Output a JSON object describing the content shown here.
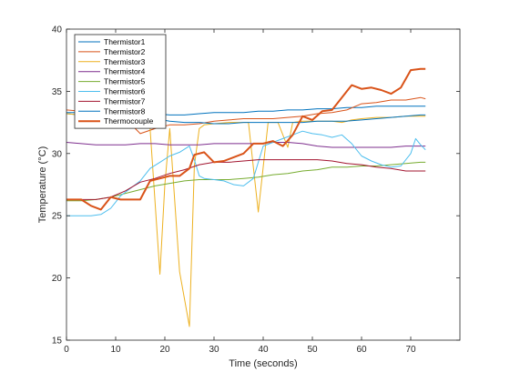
{
  "chart_data": {
    "type": "line",
    "title": "",
    "xlabel": "Time (seconds)",
    "ylabel": "Temperature (°C)",
    "xlim": [
      0,
      80
    ],
    "ylim": [
      15,
      40
    ],
    "xticks": [
      0,
      10,
      20,
      30,
      40,
      50,
      60,
      70
    ],
    "yticks": [
      15,
      20,
      25,
      30,
      35,
      40
    ],
    "grid": false,
    "legend_position": "top-left",
    "series": [
      {
        "name": "Thermistor1",
        "color": "#0072BD",
        "x": [
          0,
          3,
          6,
          9,
          12,
          15,
          18,
          21,
          24,
          27,
          30,
          33,
          36,
          39,
          42,
          45,
          48,
          51,
          54,
          57,
          60,
          63,
          66,
          69,
          72,
          73
        ],
        "y": [
          33.2,
          33.1,
          33.1,
          33.0,
          33.0,
          33.1,
          33.2,
          33.1,
          33.1,
          33.2,
          33.3,
          33.3,
          33.3,
          33.4,
          33.4,
          33.5,
          33.5,
          33.6,
          33.6,
          33.7,
          33.7,
          33.8,
          33.8,
          33.8,
          33.8,
          33.8
        ]
      },
      {
        "name": "Thermistor2",
        "color": "#D95319",
        "x": [
          0,
          3,
          6,
          9,
          12,
          15,
          18,
          21,
          24,
          27,
          30,
          33,
          36,
          39,
          42,
          45,
          48,
          51,
          54,
          57,
          60,
          63,
          66,
          69,
          72,
          73
        ],
        "y": [
          33.5,
          33.4,
          33.3,
          33.0,
          32.8,
          31.6,
          32.0,
          32.3,
          32.3,
          32.4,
          32.6,
          32.7,
          32.8,
          32.8,
          32.8,
          32.9,
          33.0,
          33.2,
          33.3,
          33.5,
          34.0,
          34.1,
          34.3,
          34.3,
          34.5,
          34.4
        ]
      },
      {
        "name": "Thermistor3",
        "color": "#EDB120",
        "x": [
          0,
          3,
          6,
          9,
          12,
          14,
          16,
          17,
          19,
          20,
          21,
          23,
          25,
          26,
          27,
          28,
          30,
          33,
          36,
          37,
          39,
          41,
          43,
          45,
          46,
          48,
          51,
          54,
          56,
          58,
          60,
          63,
          66,
          69,
          72,
          73
        ],
        "y": [
          33.2,
          33.1,
          33.0,
          32.9,
          32.8,
          32.7,
          32.5,
          32.0,
          20.3,
          27.5,
          32.0,
          20.5,
          16.1,
          29.0,
          32.0,
          32.3,
          32.4,
          32.5,
          32.5,
          32.5,
          25.3,
          32.5,
          32.5,
          30.5,
          32.5,
          32.6,
          32.6,
          32.6,
          32.5,
          32.7,
          32.8,
          32.9,
          32.9,
          33.0,
          33.0,
          33.0
        ]
      },
      {
        "name": "Thermistor4",
        "color": "#7E2F8E",
        "x": [
          0,
          3,
          6,
          9,
          12,
          15,
          18,
          21,
          24,
          27,
          30,
          33,
          36,
          39,
          42,
          45,
          48,
          51,
          54,
          57,
          60,
          63,
          66,
          69,
          72,
          73
        ],
        "y": [
          30.9,
          30.8,
          30.7,
          30.7,
          30.7,
          30.8,
          30.8,
          30.7,
          30.7,
          30.7,
          30.8,
          30.8,
          30.8,
          30.8,
          30.9,
          30.9,
          30.8,
          30.6,
          30.5,
          30.5,
          30.5,
          30.5,
          30.5,
          30.6,
          30.6,
          30.6
        ]
      },
      {
        "name": "Thermistor5",
        "color": "#77AC30",
        "x": [
          0,
          3,
          6,
          9,
          12,
          15,
          18,
          21,
          24,
          27,
          30,
          33,
          36,
          39,
          42,
          45,
          48,
          51,
          54,
          57,
          60,
          63,
          66,
          69,
          72,
          73
        ],
        "y": [
          26.2,
          26.2,
          26.3,
          26.5,
          26.8,
          27.1,
          27.4,
          27.6,
          27.8,
          27.9,
          27.9,
          27.9,
          28.0,
          28.1,
          28.3,
          28.4,
          28.6,
          28.7,
          28.9,
          28.9,
          29.0,
          29.0,
          29.1,
          29.2,
          29.3,
          29.3
        ]
      },
      {
        "name": "Thermistor6",
        "color": "#4DBEEE",
        "x": [
          0,
          3,
          5,
          7,
          9,
          11,
          13,
          15,
          17,
          19,
          21,
          23,
          25,
          26,
          27,
          28,
          30,
          32,
          34,
          36,
          38,
          40,
          42,
          44,
          46,
          48,
          50,
          52,
          54,
          56,
          58,
          60,
          62,
          64,
          66,
          68,
          70,
          71,
          72,
          73
        ],
        "y": [
          25.0,
          25.0,
          25.0,
          25.1,
          25.6,
          26.6,
          27.2,
          27.8,
          28.8,
          29.3,
          29.8,
          30.1,
          30.6,
          29.5,
          28.2,
          28.0,
          27.9,
          27.8,
          27.5,
          27.4,
          28.0,
          30.6,
          30.9,
          31.2,
          31.5,
          31.8,
          31.6,
          31.5,
          31.3,
          31.5,
          30.8,
          29.8,
          29.4,
          29.1,
          28.9,
          29.0,
          30.0,
          31.2,
          30.7,
          30.3
        ]
      },
      {
        "name": "Thermistor7",
        "color": "#A2142F",
        "x": [
          0,
          3,
          6,
          9,
          12,
          15,
          18,
          21,
          24,
          27,
          30,
          33,
          36,
          39,
          42,
          45,
          48,
          51,
          54,
          57,
          60,
          63,
          66,
          69,
          72,
          73
        ],
        "y": [
          26.3,
          26.3,
          26.3,
          26.5,
          27.0,
          27.7,
          28.0,
          28.4,
          28.7,
          29.1,
          29.3,
          29.3,
          29.4,
          29.5,
          29.5,
          29.5,
          29.5,
          29.5,
          29.4,
          29.2,
          29.1,
          28.9,
          28.8,
          28.6,
          28.6,
          28.6
        ]
      },
      {
        "name": "Thermistor8",
        "color": "#0072BD",
        "x": [
          0,
          3,
          6,
          9,
          12,
          15,
          18,
          21,
          24,
          27,
          30,
          33,
          36,
          39,
          42,
          45,
          48,
          51,
          54,
          57,
          60,
          63,
          66,
          69,
          72,
          73
        ],
        "y": [
          33.3,
          33.3,
          33.2,
          33.1,
          33.0,
          32.9,
          32.8,
          32.6,
          32.5,
          32.5,
          32.4,
          32.4,
          32.5,
          32.5,
          32.5,
          32.5,
          32.5,
          32.6,
          32.6,
          32.6,
          32.7,
          32.8,
          32.9,
          33.0,
          33.1,
          33.1
        ]
      },
      {
        "name": "Thermocouple",
        "color": "#D95319",
        "x": [
          0,
          3,
          5,
          7,
          9,
          11,
          13,
          15,
          17,
          19,
          21,
          23,
          25,
          26,
          28,
          30,
          32,
          34,
          36,
          38,
          40,
          42,
          44,
          46,
          48,
          50,
          52,
          54,
          56,
          58,
          60,
          62,
          64,
          66,
          68,
          70,
          72,
          73
        ],
        "y": [
          26.3,
          26.3,
          25.8,
          25.5,
          26.5,
          26.3,
          26.3,
          26.3,
          27.8,
          28.0,
          28.2,
          28.2,
          28.8,
          29.9,
          30.1,
          29.3,
          29.4,
          29.7,
          30.0,
          30.8,
          30.8,
          31.0,
          30.6,
          31.5,
          33.0,
          32.7,
          33.4,
          33.5,
          34.5,
          35.5,
          35.2,
          35.3,
          35.1,
          34.8,
          35.3,
          36.7,
          36.8,
          36.8
        ]
      }
    ]
  }
}
